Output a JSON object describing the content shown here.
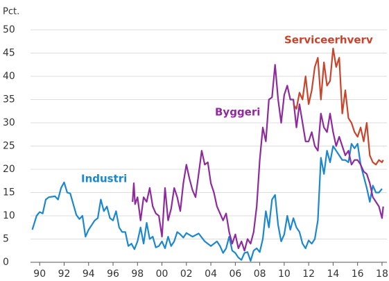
{
  "chart_data": {
    "type": "line",
    "y_label": "Pct.",
    "xlim": [
      1989.25,
      2018.4
    ],
    "ylim": [
      0,
      50
    ],
    "yticks": [
      0,
      5,
      10,
      15,
      20,
      25,
      30,
      35,
      40,
      45,
      50
    ],
    "xticks": [
      {
        "value": 1990,
        "label": "90"
      },
      {
        "value": 1992,
        "label": "92"
      },
      {
        "value": 1994,
        "label": "94"
      },
      {
        "value": 1996,
        "label": "96"
      },
      {
        "value": 1998,
        "label": "98"
      },
      {
        "value": 2000,
        "label": "00"
      },
      {
        "value": 2002,
        "label": "02"
      },
      {
        "value": 2004,
        "label": "04"
      },
      {
        "value": 2006,
        "label": "06"
      },
      {
        "value": 2008,
        "label": "08"
      },
      {
        "value": 2010,
        "label": "10"
      },
      {
        "value": 2012,
        "label": "12"
      },
      {
        "value": 2014,
        "label": "14"
      },
      {
        "value": 2016,
        "label": "16"
      },
      {
        "value": 2018,
        "label": "18"
      }
    ],
    "grid": true,
    "series": [
      {
        "name": "Industri",
        "color": "#1a87d0",
        "x": [
          1989.4,
          1989.75,
          1990,
          1990.25,
          1990.5,
          1990.75,
          1991.25,
          1991.5,
          1991.75,
          1992,
          1992.25,
          1992.5,
          1992.75,
          1993,
          1993.25,
          1993.5,
          1993.75,
          1994,
          1994.5,
          1994.75,
          1995,
          1995.25,
          1995.5,
          1995.75,
          1996,
          1996.25,
          1996.5,
          1996.75,
          1997,
          1997.25,
          1997.5,
          1997.75,
          1998,
          1998.25,
          1998.5,
          1998.75,
          1999,
          1999.25,
          1999.5,
          1999.75,
          2000,
          2000.25,
          2000.5,
          2000.75,
          2001,
          2001.25,
          2001.5,
          2001.75,
          2002,
          2002.5,
          2003,
          2003.5,
          2004,
          2004.5,
          2004.75,
          2005,
          2005.25,
          2005.5,
          2005.75,
          2006,
          2006.25,
          2006.5,
          2006.75,
          2007,
          2007.25,
          2007.5,
          2007.75,
          2008,
          2008.25,
          2008.5,
          2008.75,
          2009,
          2009.25,
          2009.5,
          2009.75,
          2010,
          2010.25,
          2010.5,
          2010.75,
          2011,
          2011.25,
          2011.5,
          2011.75,
          2012,
          2012.25,
          2012.5,
          2012.75,
          2013,
          2013.25,
          2013.5,
          2013.75,
          2014,
          2014.25,
          2014.5,
          2014.75,
          2015,
          2015.25,
          2015.5,
          2015.75,
          2016,
          2016.25,
          2016.5,
          2016.75,
          2017,
          2017.25,
          2017.5,
          2017.75,
          2018
        ],
        "values": [
          7,
          10,
          10.8,
          10.5,
          13.5,
          14,
          14.2,
          13.5,
          16,
          17.2,
          15,
          14.8,
          12.5,
          10.2,
          9.3,
          10,
          5.5,
          7,
          9,
          9.5,
          13.5,
          11,
          12,
          9.5,
          9,
          11,
          7.5,
          6.5,
          6.5,
          3.5,
          4,
          2.8,
          4.5,
          7.5,
          4,
          8.5,
          5,
          5.5,
          3.2,
          3.5,
          4.5,
          3,
          5.5,
          3.5,
          4.5,
          6.5,
          6,
          5.3,
          6.3,
          5.5,
          6.2,
          4.5,
          3.5,
          4.5,
          3.5,
          2,
          3,
          5.5,
          2.5,
          2,
          1,
          0.5,
          2,
          2.2,
          0.3,
          2.5,
          3,
          2.2,
          5,
          11,
          7.5,
          13.5,
          14.5,
          8,
          4.5,
          6,
          10,
          7,
          9.5,
          7.5,
          6.5,
          4,
          3,
          4.7,
          4,
          5,
          9,
          22.5,
          19,
          24,
          21.5,
          25,
          24,
          23,
          22,
          22,
          21.5,
          25.5,
          24.5,
          25.5,
          21,
          18.5,
          16,
          13,
          16.5,
          15,
          15,
          15.8
        ]
      },
      {
        "name": "Byggeri",
        "color": "#8e2a9e",
        "x": [
          1997.6,
          1997.7,
          1997.8,
          1998,
          1998.25,
          1998.5,
          1998.75,
          1999,
          1999.25,
          1999.5,
          1999.75,
          2000,
          2000.25,
          2000.5,
          2000.75,
          2001,
          2001.25,
          2001.5,
          2001.75,
          2002,
          2002.25,
          2002.5,
          2002.75,
          2003,
          2003.25,
          2003.5,
          2003.75,
          2004,
          2004.25,
          2004.5,
          2004.75,
          2005,
          2005.25,
          2005.5,
          2005.75,
          2006,
          2006.25,
          2006.5,
          2006.75,
          2007,
          2007.25,
          2007.5,
          2007.75,
          2008,
          2008.25,
          2008.5,
          2008.75,
          2009,
          2009.25,
          2009.5,
          2009.75,
          2010,
          2010.25,
          2010.5,
          2010.75,
          2011,
          2011.25,
          2011.5,
          2011.75,
          2012,
          2012.25,
          2012.5,
          2012.75,
          2013,
          2013.25,
          2013.5,
          2013.75,
          2014,
          2014.25,
          2014.5,
          2014.75,
          2015,
          2015.25,
          2015.5,
          2015.75,
          2016,
          2016.25,
          2016.5,
          2016.75,
          2017,
          2017.25,
          2017.5,
          2017.75,
          2018,
          2018.1
        ],
        "values": [
          13,
          17,
          12.5,
          14,
          9,
          14,
          13,
          16,
          12,
          10.5,
          10,
          5.5,
          16,
          9,
          11.5,
          16,
          14,
          11,
          17,
          21,
          18,
          15.5,
          14,
          19,
          24,
          21,
          21.5,
          17,
          15,
          12,
          10.5,
          9,
          10.5,
          6.5,
          4,
          6,
          3,
          4.5,
          2.5,
          5,
          4,
          6.5,
          12,
          22,
          29,
          26,
          35,
          35.5,
          42.5,
          35,
          30,
          36,
          38,
          35,
          35,
          29,
          34,
          30,
          26,
          26,
          28,
          25,
          24,
          32,
          29,
          28,
          32,
          28,
          25,
          27,
          25,
          23,
          24,
          21,
          22,
          22,
          21,
          19.5,
          19,
          17,
          14,
          13,
          12,
          9.5,
          12
        ]
      },
      {
        "name": "Serviceerhverv",
        "color": "#c9442b",
        "x": [
          2010.75,
          2011,
          2011.25,
          2011.5,
          2011.75,
          2012,
          2012.25,
          2012.5,
          2012.75,
          2013,
          2013.25,
          2013.5,
          2013.75,
          2014,
          2014.25,
          2014.5,
          2014.75,
          2015,
          2015.25,
          2015.5,
          2015.75,
          2016,
          2016.25,
          2016.5,
          2016.75,
          2017,
          2017.25,
          2017.5,
          2017.75,
          2018,
          2018.1
        ],
        "values": [
          34,
          33,
          36.5,
          35,
          40,
          34,
          37,
          42,
          44,
          35,
          43,
          38,
          39,
          46,
          42,
          44,
          32,
          37,
          31,
          30,
          28,
          27,
          29,
          26,
          30,
          23,
          21.5,
          21,
          22,
          21.5,
          22
        ]
      }
    ]
  }
}
